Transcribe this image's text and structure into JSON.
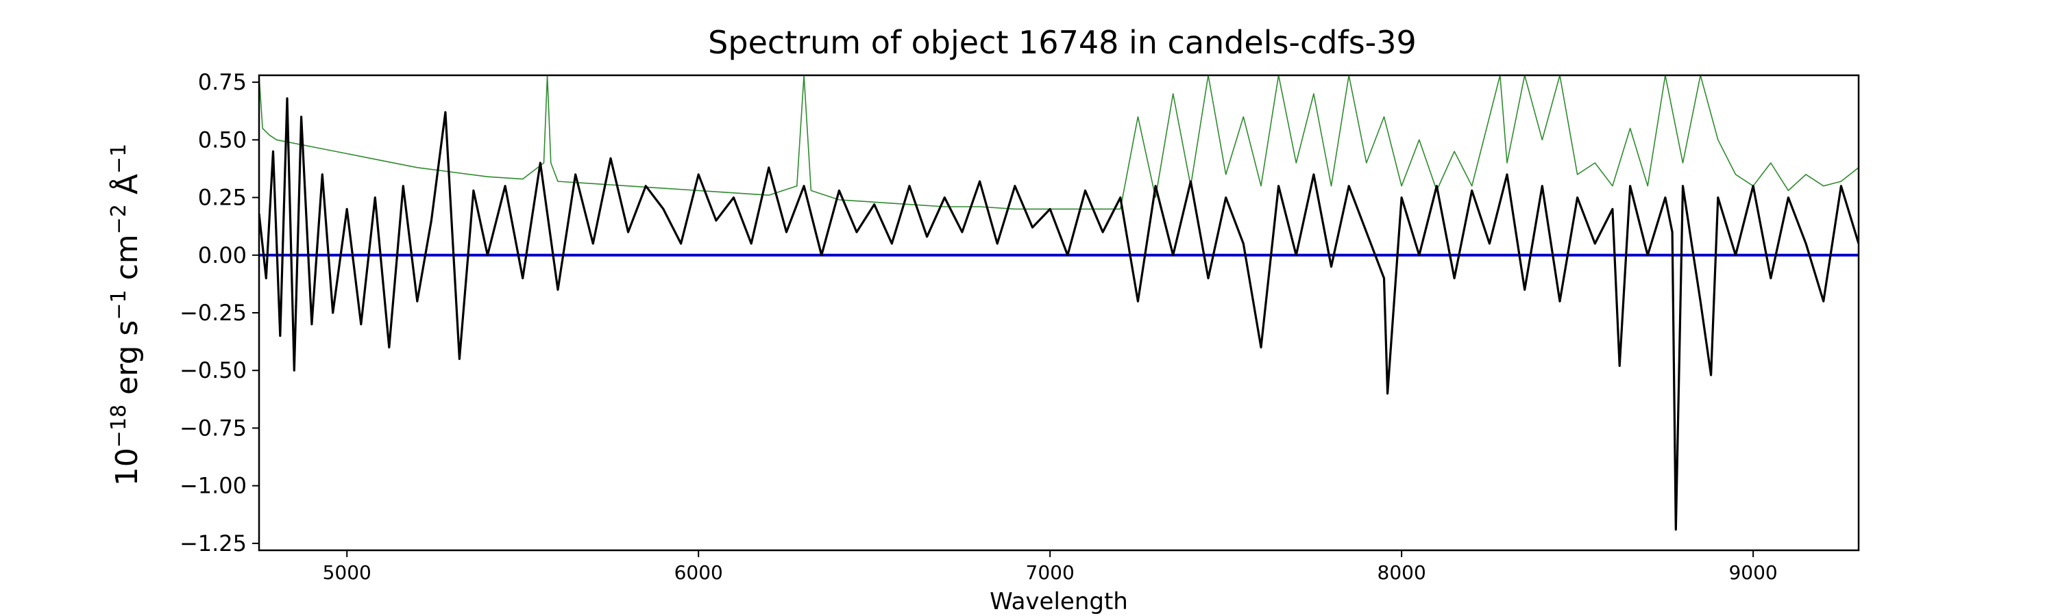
{
  "chart_data": {
    "type": "line",
    "title": "Spectrum of object 16748 in candels-cdfs-39",
    "xlabel": "Wavelength",
    "ylabel_base": "10",
    "ylabel_exp": "−18",
    "ylabel_unit1": " erg s",
    "ylabel_unit1_exp": "−1",
    "ylabel_unit2": " cm",
    "ylabel_unit2_exp": "−2",
    "ylabel_unit3": " Å",
    "ylabel_unit3_exp": "−1",
    "xlim": [
      4750,
      9300
    ],
    "ylim": [
      -1.28,
      0.78
    ],
    "x_ticks": [
      5000,
      6000,
      7000,
      8000,
      9000
    ],
    "x_tick_labels": [
      "5000",
      "6000",
      "7000",
      "8000",
      "9000"
    ],
    "y_ticks": [
      0.75,
      0.5,
      0.25,
      0.0,
      -0.25,
      -0.5,
      -0.75,
      -1.0,
      -1.25
    ],
    "y_tick_labels": [
      "0.75",
      "0.50",
      "0.25",
      "0.00",
      "−0.25",
      "−0.50",
      "−0.75",
      "−1.00",
      "−1.25"
    ],
    "grid": false,
    "colors": {
      "flux": "#000000",
      "error": "#2e8b2e",
      "zero": "#0000cc"
    },
    "series": [
      {
        "key": "flux",
        "x": [
          4750,
          4770,
          4790,
          4810,
          4830,
          4850,
          4870,
          4900,
          4930,
          4960,
          5000,
          5040,
          5080,
          5120,
          5160,
          5200,
          5240,
          5280,
          5320,
          5360,
          5400,
          5450,
          5500,
          5550,
          5600,
          5650,
          5700,
          5750,
          5800,
          5850,
          5900,
          5950,
          6000,
          6050,
          6100,
          6150,
          6200,
          6250,
          6300,
          6350,
          6400,
          6450,
          6500,
          6550,
          6600,
          6650,
          6700,
          6750,
          6800,
          6850,
          6900,
          6950,
          7000,
          7050,
          7100,
          7150,
          7200,
          7250,
          7300,
          7350,
          7400,
          7450,
          7500,
          7550,
          7600,
          7650,
          7700,
          7750,
          7800,
          7850,
          7900,
          7950,
          7960,
          8000,
          8050,
          8100,
          8150,
          8200,
          8250,
          8300,
          8350,
          8400,
          8450,
          8500,
          8550,
          8600,
          8620,
          8650,
          8700,
          8750,
          8770,
          8780,
          8800,
          8850,
          8880,
          8900,
          8950,
          9000,
          9050,
          9100,
          9150,
          9200,
          9250,
          9300
        ],
        "y": [
          0.18,
          -0.1,
          0.45,
          -0.35,
          0.68,
          -0.5,
          0.6,
          -0.3,
          0.35,
          -0.25,
          0.2,
          -0.3,
          0.25,
          -0.4,
          0.3,
          -0.2,
          0.15,
          0.62,
          -0.45,
          0.28,
          0.0,
          0.3,
          -0.1,
          0.4,
          -0.15,
          0.35,
          0.05,
          0.42,
          0.1,
          0.3,
          0.2,
          0.05,
          0.35,
          0.15,
          0.25,
          0.05,
          0.38,
          0.1,
          0.3,
          0.0,
          0.28,
          0.1,
          0.22,
          0.05,
          0.3,
          0.08,
          0.25,
          0.1,
          0.32,
          0.05,
          0.3,
          0.12,
          0.2,
          0.0,
          0.28,
          0.1,
          0.25,
          -0.2,
          0.3,
          0.0,
          0.32,
          -0.1,
          0.25,
          0.05,
          -0.4,
          0.3,
          0.0,
          0.35,
          -0.05,
          0.3,
          0.1,
          -0.1,
          -0.6,
          0.25,
          0.0,
          0.3,
          -0.1,
          0.28,
          0.05,
          0.35,
          -0.15,
          0.3,
          -0.2,
          0.25,
          0.05,
          0.2,
          -0.48,
          0.3,
          0.0,
          0.25,
          0.1,
          -1.19,
          0.3,
          -0.2,
          -0.52,
          0.25,
          0.0,
          0.3,
          -0.1,
          0.25,
          0.05,
          -0.2,
          0.3,
          0.05
        ]
      },
      {
        "key": "error",
        "x": [
          4750,
          4760,
          4780,
          4800,
          4900,
          5000,
          5100,
          5200,
          5300,
          5400,
          5500,
          5560,
          5570,
          5580,
          5600,
          5700,
          5800,
          5900,
          6000,
          6100,
          6200,
          6280,
          6300,
          6320,
          6400,
          6500,
          6600,
          6700,
          6800,
          6900,
          7000,
          7100,
          7200,
          7250,
          7300,
          7350,
          7400,
          7450,
          7500,
          7550,
          7600,
          7650,
          7700,
          7750,
          7800,
          7850,
          7900,
          7950,
          8000,
          8050,
          8100,
          8150,
          8200,
          8280,
          8300,
          8350,
          8400,
          8450,
          8500,
          8550,
          8600,
          8650,
          8700,
          8750,
          8800,
          8850,
          8900,
          8950,
          9000,
          9050,
          9100,
          9150,
          9200,
          9250,
          9300
        ],
        "y": [
          0.78,
          0.55,
          0.52,
          0.5,
          0.47,
          0.44,
          0.41,
          0.38,
          0.36,
          0.34,
          0.33,
          0.4,
          0.78,
          0.4,
          0.32,
          0.31,
          0.3,
          0.29,
          0.28,
          0.27,
          0.26,
          0.3,
          0.78,
          0.28,
          0.24,
          0.23,
          0.22,
          0.21,
          0.21,
          0.2,
          0.2,
          0.2,
          0.2,
          0.6,
          0.25,
          0.7,
          0.3,
          0.78,
          0.35,
          0.6,
          0.3,
          0.78,
          0.4,
          0.7,
          0.3,
          0.78,
          0.4,
          0.6,
          0.3,
          0.5,
          0.28,
          0.45,
          0.3,
          0.78,
          0.4,
          0.78,
          0.5,
          0.78,
          0.35,
          0.4,
          0.3,
          0.55,
          0.3,
          0.78,
          0.4,
          0.78,
          0.5,
          0.35,
          0.3,
          0.4,
          0.28,
          0.35,
          0.3,
          0.32,
          0.38
        ]
      },
      {
        "key": "zero",
        "x": [
          4750,
          9300
        ],
        "y": [
          0.0,
          0.0
        ]
      }
    ]
  }
}
